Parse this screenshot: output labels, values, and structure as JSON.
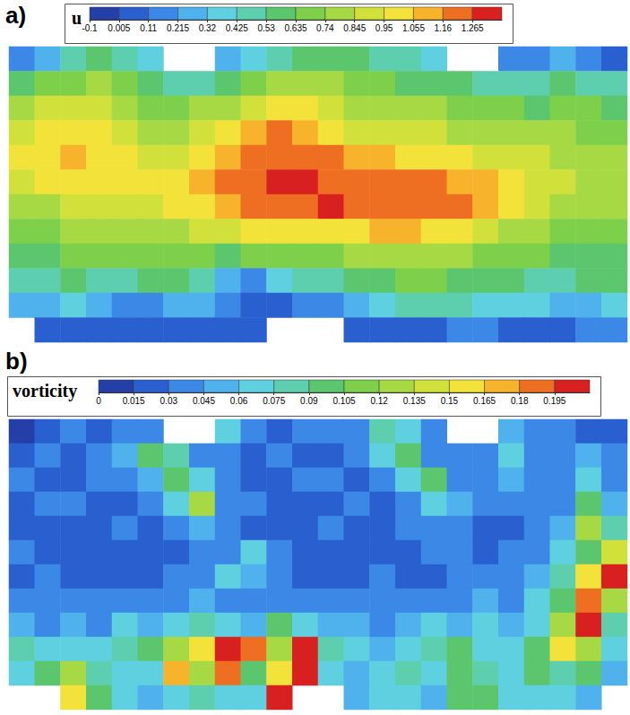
{
  "chart_data": [
    {
      "type": "heatmap",
      "panel_label": "a)",
      "title": "u",
      "tick_labels": false,
      "colorbar": {
        "range": [
          -0.1,
          1.37
        ],
        "ticks": [
          -0.1,
          0.005,
          0.11,
          0.215,
          0.32,
          0.425,
          0.53,
          0.635,
          0.74,
          0.845,
          0.95,
          1.055,
          1.16,
          1.265
        ],
        "colors": [
          "#2440a8",
          "#2a5fd0",
          "#3b88e6",
          "#4fb2ec",
          "#5fd0e0",
          "#5ecfae",
          "#5cc66e",
          "#7ed04a",
          "#a6d944",
          "#d2e03c",
          "#f3e23a",
          "#f7b32c",
          "#ef6f22",
          "#d92020"
        ]
      },
      "cells": [
        [
          0.2,
          0.3,
          0.5,
          0.6,
          0.5,
          0.4,
          null,
          null,
          0.3,
          0.4,
          0.5,
          0.6,
          0.6,
          0.6,
          0.5,
          0.5,
          0.4,
          null,
          null,
          0.2,
          0.2,
          0.3,
          0.2,
          0.1
        ],
        [
          0.6,
          0.7,
          0.7,
          0.8,
          0.7,
          0.6,
          0.5,
          0.5,
          0.6,
          0.7,
          0.8,
          0.8,
          0.8,
          0.7,
          0.7,
          0.6,
          0.6,
          0.6,
          0.5,
          0.5,
          0.5,
          0.6,
          0.5,
          0.5
        ],
        [
          0.8,
          0.9,
          0.9,
          0.9,
          0.8,
          0.7,
          0.7,
          0.8,
          0.8,
          0.9,
          1.0,
          1.0,
          0.9,
          0.8,
          0.8,
          0.8,
          0.8,
          0.7,
          0.7,
          0.7,
          0.6,
          0.7,
          0.7,
          0.6
        ],
        [
          0.9,
          1.0,
          1.0,
          1.0,
          0.9,
          0.8,
          0.8,
          0.9,
          1.0,
          1.1,
          1.2,
          1.1,
          1.0,
          0.9,
          0.9,
          0.9,
          0.9,
          0.8,
          0.8,
          0.8,
          0.8,
          0.8,
          0.7,
          0.7
        ],
        [
          1.0,
          1.0,
          1.1,
          1.0,
          1.0,
          0.9,
          0.9,
          1.0,
          1.1,
          1.2,
          1.25,
          1.2,
          1.2,
          1.1,
          1.1,
          1.0,
          1.0,
          1.0,
          0.9,
          0.9,
          0.9,
          0.8,
          0.8,
          0.8
        ],
        [
          0.9,
          1.0,
          1.0,
          1.0,
          1.0,
          1.0,
          1.0,
          1.1,
          1.2,
          1.25,
          1.3,
          1.3,
          1.25,
          1.2,
          1.2,
          1.2,
          1.2,
          1.1,
          1.1,
          1.0,
          0.9,
          0.9,
          0.8,
          0.8
        ],
        [
          0.8,
          0.8,
          0.9,
          0.9,
          0.9,
          0.9,
          1.0,
          1.0,
          1.1,
          1.2,
          1.2,
          1.25,
          1.3,
          1.25,
          1.2,
          1.2,
          1.2,
          1.2,
          1.1,
          1.0,
          0.9,
          0.8,
          0.8,
          0.8
        ],
        [
          0.7,
          0.7,
          0.8,
          0.8,
          0.8,
          0.8,
          0.8,
          0.9,
          0.9,
          1.0,
          1.0,
          1.0,
          1.0,
          1.0,
          1.1,
          1.1,
          1.0,
          1.0,
          0.9,
          0.8,
          0.8,
          0.7,
          0.7,
          0.7
        ],
        [
          0.6,
          0.6,
          0.7,
          0.7,
          0.7,
          0.7,
          0.7,
          0.7,
          0.6,
          0.7,
          0.7,
          0.7,
          0.7,
          0.8,
          0.8,
          0.8,
          0.8,
          0.8,
          0.7,
          0.7,
          0.7,
          0.6,
          0.6,
          0.6
        ],
        [
          0.5,
          0.5,
          0.6,
          0.5,
          0.5,
          0.6,
          0.6,
          0.5,
          0.3,
          0.2,
          0.4,
          0.5,
          0.5,
          0.6,
          0.6,
          0.7,
          0.7,
          0.6,
          0.6,
          0.6,
          0.5,
          0.5,
          0.6,
          0.6
        ],
        [
          0.3,
          0.3,
          0.4,
          0.3,
          0.2,
          0.2,
          0.3,
          0.3,
          0.2,
          0.1,
          0.1,
          0.2,
          0.2,
          0.3,
          0.4,
          0.5,
          0.5,
          0.5,
          0.4,
          0.4,
          0.4,
          0.3,
          0.3,
          0.4
        ],
        [
          null,
          0.1,
          0.1,
          0.1,
          0.1,
          0.1,
          0.1,
          0.1,
          0.1,
          0.1,
          null,
          null,
          null,
          0.1,
          0.1,
          0.1,
          0.1,
          0.2,
          0.2,
          0.1,
          0.1,
          0.1,
          0.2,
          0.2
        ]
      ]
    },
    {
      "type": "heatmap",
      "panel_label": "b)",
      "title": "vorticity",
      "tick_labels": false,
      "colorbar": {
        "range": [
          0,
          0.21
        ],
        "ticks": [
          0,
          0.015,
          0.03,
          0.045,
          0.06,
          0.075,
          0.09,
          0.105,
          0.12,
          0.135,
          0.15,
          0.165,
          0.18,
          0.195
        ],
        "colors": [
          "#2440a8",
          "#2a5fd0",
          "#3b88e6",
          "#4fb2ec",
          "#5fd0e0",
          "#5ecfae",
          "#5cc66e",
          "#7ed04a",
          "#a6d944",
          "#d2e03c",
          "#f3e23a",
          "#f7b32c",
          "#ef6f22",
          "#d92020"
        ]
      },
      "cells": [
        [
          0.01,
          0.02,
          0.03,
          0.02,
          0.03,
          0.04,
          null,
          null,
          0.06,
          0.03,
          0.02,
          0.03,
          0.04,
          0.03,
          0.08,
          0.06,
          0.04,
          null,
          null,
          0.05,
          0.03,
          0.04,
          0.02,
          0.02
        ],
        [
          0.02,
          0.03,
          0.02,
          0.03,
          0.05,
          0.09,
          0.08,
          0.04,
          0.03,
          0.02,
          0.03,
          0.02,
          0.02,
          0.03,
          0.06,
          0.1,
          0.04,
          0.03,
          0.04,
          0.06,
          0.03,
          0.03,
          0.05,
          0.03
        ],
        [
          0.03,
          0.02,
          0.02,
          0.03,
          0.03,
          0.05,
          0.1,
          0.06,
          0.03,
          0.02,
          0.02,
          0.03,
          0.03,
          0.02,
          0.03,
          0.07,
          0.09,
          0.04,
          0.03,
          0.05,
          0.04,
          0.03,
          0.06,
          0.04
        ],
        [
          0.02,
          0.03,
          0.03,
          0.02,
          0.02,
          0.03,
          0.06,
          0.12,
          0.04,
          0.03,
          0.02,
          0.02,
          0.02,
          0.03,
          0.02,
          0.03,
          0.06,
          0.05,
          0.03,
          0.03,
          0.03,
          0.04,
          0.09,
          0.05
        ],
        [
          0.02,
          0.02,
          0.02,
          0.02,
          0.03,
          0.02,
          0.03,
          0.05,
          0.03,
          0.02,
          0.02,
          0.02,
          0.03,
          0.02,
          0.02,
          0.03,
          0.04,
          0.03,
          0.02,
          0.02,
          0.03,
          0.05,
          0.12,
          0.08
        ],
        [
          0.03,
          0.02,
          0.02,
          0.02,
          0.02,
          0.02,
          0.02,
          0.03,
          0.04,
          0.06,
          0.03,
          0.02,
          0.02,
          0.02,
          0.02,
          0.02,
          0.03,
          0.03,
          0.02,
          0.03,
          0.04,
          0.06,
          0.1,
          0.14
        ],
        [
          0.02,
          0.03,
          0.02,
          0.02,
          0.02,
          0.02,
          0.03,
          0.03,
          0.07,
          0.05,
          0.03,
          0.02,
          0.02,
          0.02,
          0.03,
          0.02,
          0.02,
          0.03,
          0.03,
          0.03,
          0.05,
          0.08,
          0.15,
          0.2
        ],
        [
          0.03,
          0.03,
          0.04,
          0.03,
          0.03,
          0.03,
          0.04,
          0.05,
          0.04,
          0.03,
          0.04,
          0.03,
          0.03,
          0.04,
          0.03,
          0.03,
          0.04,
          0.04,
          0.05,
          0.04,
          0.06,
          0.1,
          0.18,
          0.12
        ],
        [
          0.05,
          0.04,
          0.05,
          0.04,
          0.06,
          0.05,
          0.06,
          0.08,
          0.06,
          0.05,
          0.1,
          0.07,
          0.05,
          0.05,
          0.04,
          0.05,
          0.06,
          0.05,
          0.06,
          0.05,
          0.07,
          0.12,
          0.2,
          0.08
        ],
        [
          0.08,
          0.06,
          0.07,
          0.06,
          0.08,
          0.1,
          0.12,
          0.15,
          0.2,
          0.18,
          0.12,
          0.2,
          0.08,
          0.06,
          0.05,
          0.06,
          0.08,
          0.1,
          0.07,
          0.06,
          0.09,
          0.15,
          0.12,
          0.06
        ],
        [
          0.06,
          0.1,
          0.12,
          0.08,
          0.06,
          0.07,
          0.17,
          0.12,
          0.19,
          0.1,
          0.16,
          0.2,
          0.06,
          0.05,
          0.06,
          0.08,
          0.07,
          0.1,
          0.08,
          0.07,
          0.1,
          0.08,
          0.09,
          0.05
        ],
        [
          null,
          null,
          0.15,
          0.1,
          0.06,
          0.05,
          0.06,
          0.08,
          0.07,
          0.06,
          0.2,
          null,
          null,
          0.05,
          0.07,
          0.06,
          0.05,
          0.09,
          0.1,
          0.06,
          0.07,
          0.06,
          0.05,
          null
        ]
      ]
    }
  ]
}
